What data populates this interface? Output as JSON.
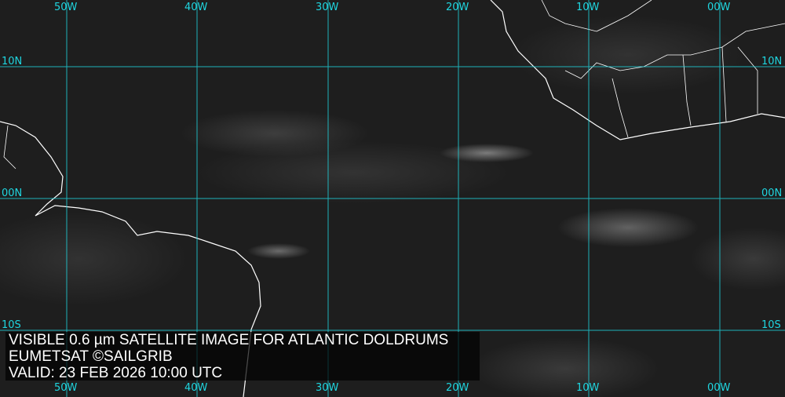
{
  "caption": {
    "line1": "VISIBLE 0.6 µm SATELLITE IMAGE FOR ATLANTIC DOLDRUMS",
    "line2": "EUMETSAT ©SAILGRIB",
    "line3": "VALID:  23 FEB 2026 10:00 UTC"
  },
  "grid": {
    "color": "#1fd6e0",
    "longitudes": [
      "50W",
      "40W",
      "30W",
      "20W",
      "10W",
      "00W"
    ],
    "latitudes": [
      "10N",
      "00N",
      "10S"
    ]
  }
}
